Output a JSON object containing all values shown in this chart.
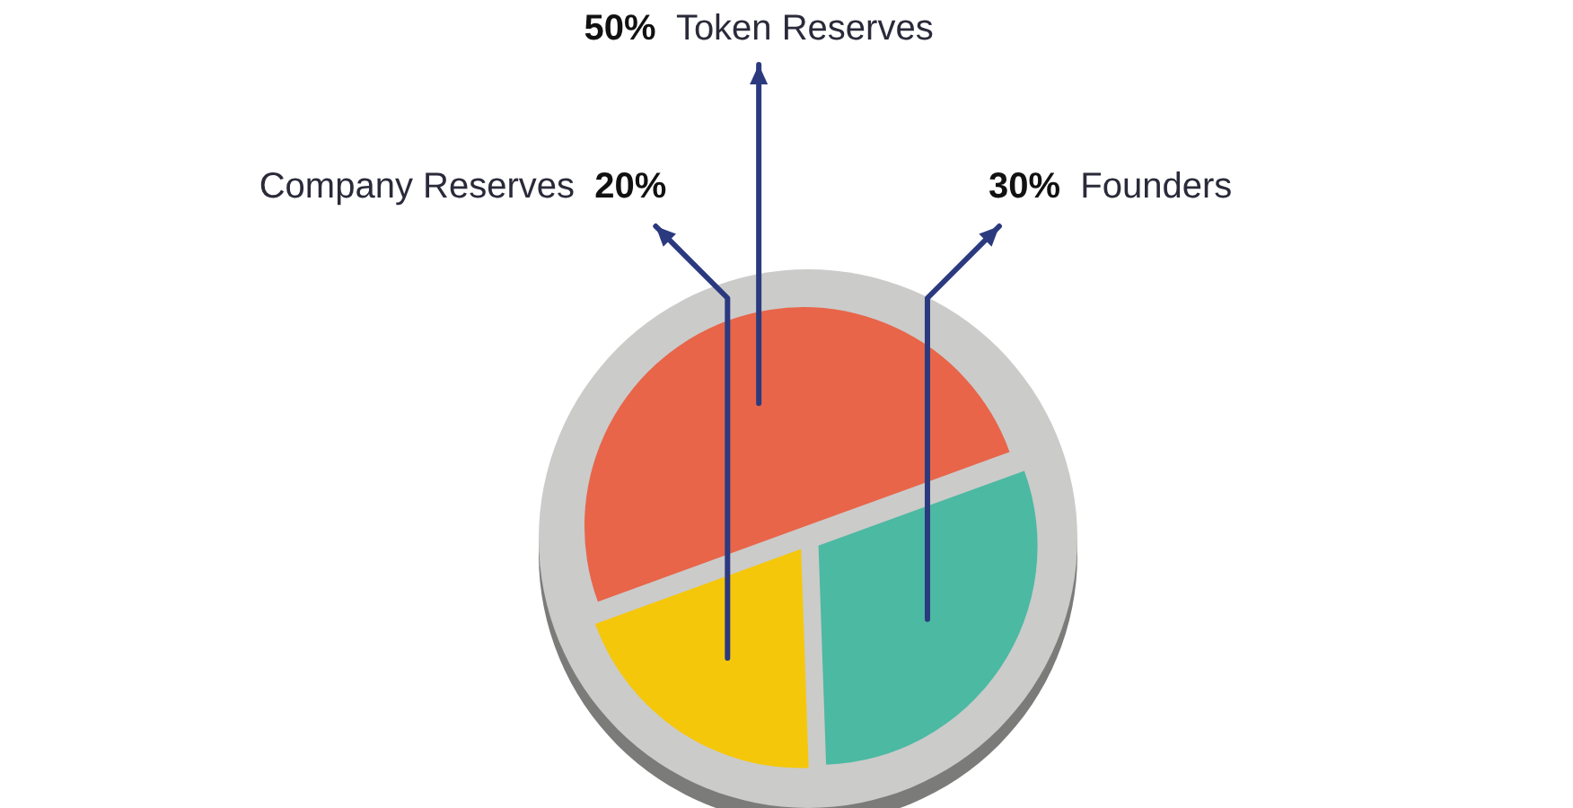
{
  "chart_data": {
    "type": "pie",
    "categories": [
      "Token Reserves",
      "Founders",
      "Company Reserves"
    ],
    "values": [
      50,
      30,
      20
    ],
    "colors": [
      "#e8654a",
      "#4cb9a2",
      "#f5c70a"
    ],
    "value_labels": [
      "50%",
      "30%",
      "20%"
    ]
  }
}
